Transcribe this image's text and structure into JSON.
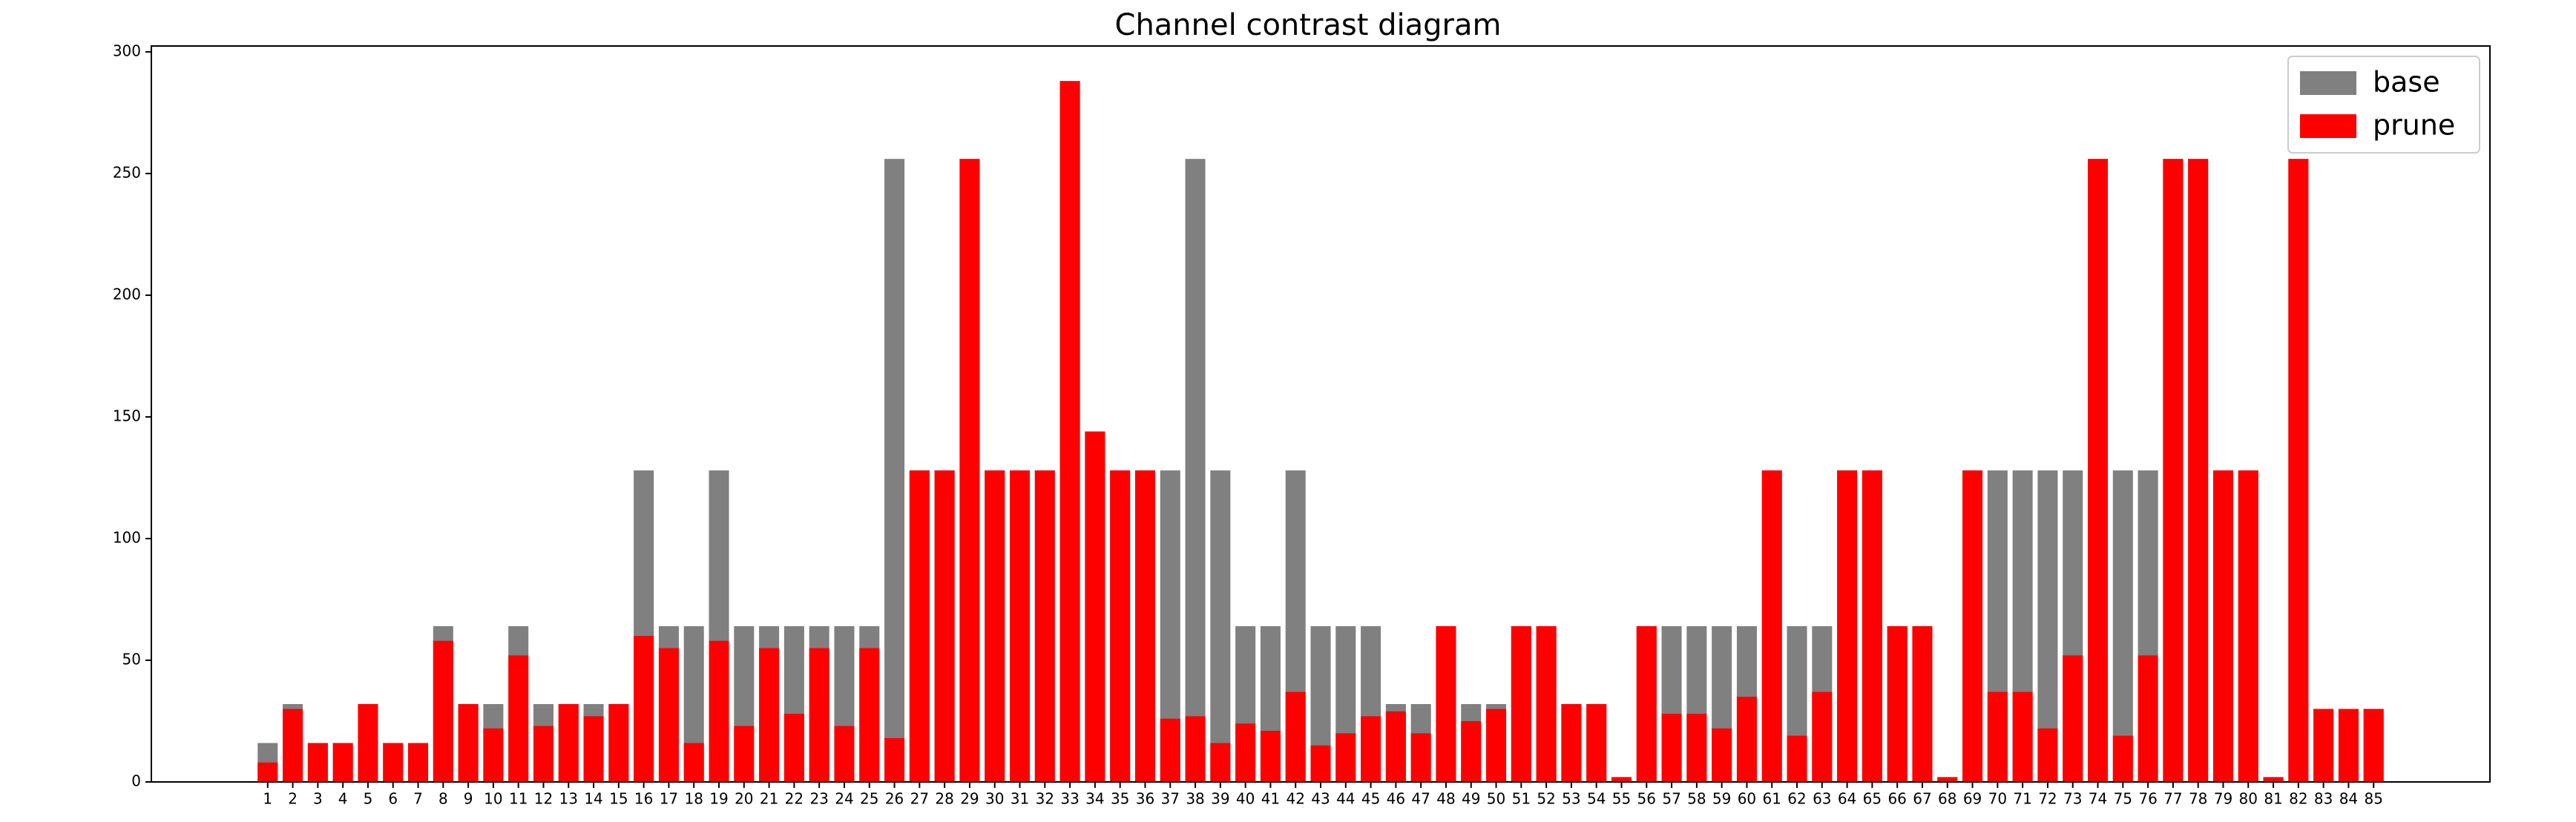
{
  "chart_data": {
    "type": "bar",
    "title": "Channel contrast diagram",
    "categories": [
      1,
      2,
      3,
      4,
      5,
      6,
      7,
      8,
      9,
      10,
      11,
      12,
      13,
      14,
      15,
      16,
      17,
      18,
      19,
      20,
      21,
      22,
      23,
      24,
      25,
      26,
      27,
      28,
      29,
      30,
      31,
      32,
      33,
      34,
      35,
      36,
      37,
      38,
      39,
      40,
      41,
      42,
      43,
      44,
      45,
      46,
      47,
      48,
      49,
      50,
      51,
      52,
      53,
      54,
      55,
      56,
      57,
      58,
      59,
      60,
      61,
      62,
      63,
      64,
      65,
      66,
      67,
      68,
      69,
      70,
      71,
      72,
      73,
      74,
      75,
      76,
      77,
      78,
      79,
      80,
      81,
      82,
      83,
      84,
      85
    ],
    "series": [
      {
        "name": "base",
        "color": "#808080",
        "values": [
          16,
          32,
          16,
          16,
          32,
          16,
          16,
          64,
          32,
          32,
          64,
          32,
          32,
          32,
          32,
          128,
          64,
          64,
          128,
          64,
          64,
          64,
          64,
          64,
          64,
          256,
          128,
          128,
          256,
          128,
          128,
          128,
          288,
          144,
          128,
          128,
          128,
          256,
          128,
          64,
          64,
          128,
          64,
          64,
          64,
          32,
          32,
          64,
          32,
          32,
          64,
          64,
          32,
          32,
          2,
          64,
          64,
          64,
          64,
          64,
          128,
          64,
          64,
          128,
          128,
          64,
          64,
          2,
          128,
          128,
          128,
          128,
          128,
          256,
          128,
          128,
          256,
          256,
          128,
          128,
          2,
          256,
          30,
          30,
          30
        ]
      },
      {
        "name": "prune",
        "color": "#ff0000",
        "values": [
          8,
          30,
          16,
          16,
          32,
          16,
          16,
          58,
          32,
          22,
          52,
          23,
          32,
          27,
          32,
          60,
          55,
          16,
          58,
          23,
          55,
          28,
          55,
          23,
          55,
          18,
          128,
          128,
          256,
          128,
          128,
          128,
          288,
          144,
          128,
          128,
          26,
          27,
          16,
          24,
          21,
          37,
          15,
          20,
          27,
          29,
          20,
          64,
          25,
          30,
          64,
          64,
          32,
          32,
          2,
          64,
          28,
          28,
          22,
          35,
          128,
          19,
          37,
          128,
          128,
          64,
          64,
          2,
          128,
          37,
          37,
          22,
          52,
          256,
          19,
          52,
          256,
          256,
          128,
          128,
          2,
          256,
          30,
          30,
          30
        ]
      }
    ],
    "ylim": [
      0,
      302.4
    ],
    "yticks": [
      0,
      50,
      100,
      150,
      200,
      250,
      300
    ],
    "legend": "upper right"
  }
}
